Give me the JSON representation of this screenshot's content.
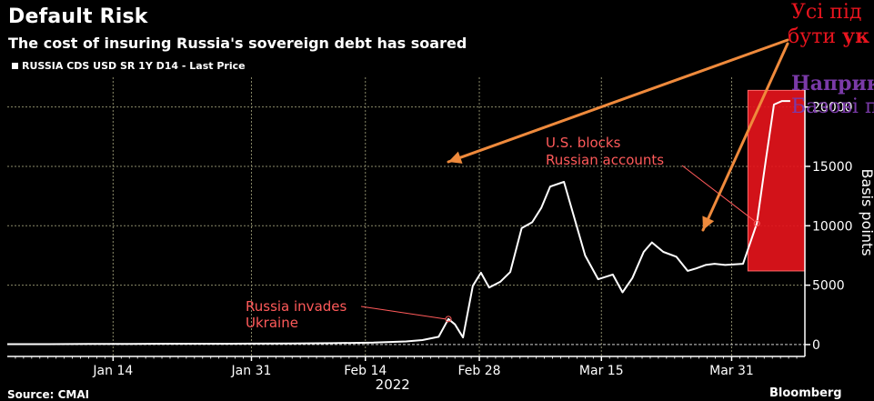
{
  "chart_data": {
    "type": "line",
    "title": "Default Risk",
    "subtitle": "The cost of insuring Russia's sovereign debt has soared",
    "legend": "RUSSIA CDS USD SR 1Y D14 - Last Price",
    "legend_position": "top-left",
    "ylabel": "Basis points",
    "xlabel": "",
    "year_label": "2022",
    "x_tick_labels": [
      "Jan 14",
      "Jan 31",
      "Feb 14",
      "Feb 28",
      "Mar 15",
      "Mar 31"
    ],
    "x_tick_days": [
      14,
      31,
      45,
      59,
      74,
      90
    ],
    "y_ticks": [
      0,
      5000,
      10000,
      15000,
      20000
    ],
    "y_tick_labels": [
      "0",
      "5000",
      "10000",
      "15000",
      "20000"
    ],
    "ylim": [
      -1000,
      22500
    ],
    "xlim": [
      1,
      99
    ],
    "grid": true,
    "line_color": "#ffffff",
    "series": [
      {
        "name": "RUSSIA CDS USD SR 1Y D14 - Last Price",
        "x": [
          1,
          6,
          11,
          16,
          21,
          26,
          31,
          36,
          41,
          46,
          50,
          52,
          54,
          55.2,
          56,
          57,
          58.2,
          59.2,
          60.2,
          61.6,
          62.8,
          64.2,
          65.5,
          66.6,
          67.7,
          69.4,
          72,
          73.6,
          75.4,
          76.6,
          77.8,
          79.2,
          80.2,
          81.6,
          83.2,
          84.6,
          85.6,
          86.8,
          87.9,
          89.2,
          91.4,
          93.1,
          94.2,
          95.2,
          96.2,
          97.2
        ],
        "y": [
          30,
          35,
          45,
          50,
          70,
          75,
          80,
          90,
          120,
          160,
          260,
          380,
          650,
          2150,
          1700,
          600,
          4950,
          6050,
          4800,
          5300,
          6100,
          9800,
          10300,
          11500,
          13300,
          13700,
          7500,
          5500,
          5900,
          4400,
          5600,
          7800,
          8600,
          7800,
          7400,
          6200,
          6400,
          6700,
          6800,
          6700,
          6800,
          10200,
          15500,
          20200,
          20500,
          20500
        ]
      }
    ],
    "annotations": [
      {
        "text_lines": [
          "Russia invades",
          "Ukraine"
        ],
        "color": "#ff5a5a",
        "x": 55.2,
        "y": 2150
      },
      {
        "text_lines": [
          "U.S. blocks",
          "Russian accounts"
        ],
        "color": "#ff5a5a",
        "x": 93.1,
        "y": 10200
      }
    ],
    "highlight_color": "#e4141b"
  },
  "overlay_text": {
    "red_line1": "Усі під",
    "red_line2_plain": "бути ",
    "red_line2_bold": "ук",
    "purple_line1": "Наприк",
    "purple_line2": "Базові п"
  },
  "footer": {
    "source": "Source: CMAI",
    "brand": "Bloomberg"
  },
  "colors": {
    "background": "#000000",
    "grid": "#8a8a6a",
    "arrow": "#ef8a3c",
    "text": "#ffffff"
  }
}
